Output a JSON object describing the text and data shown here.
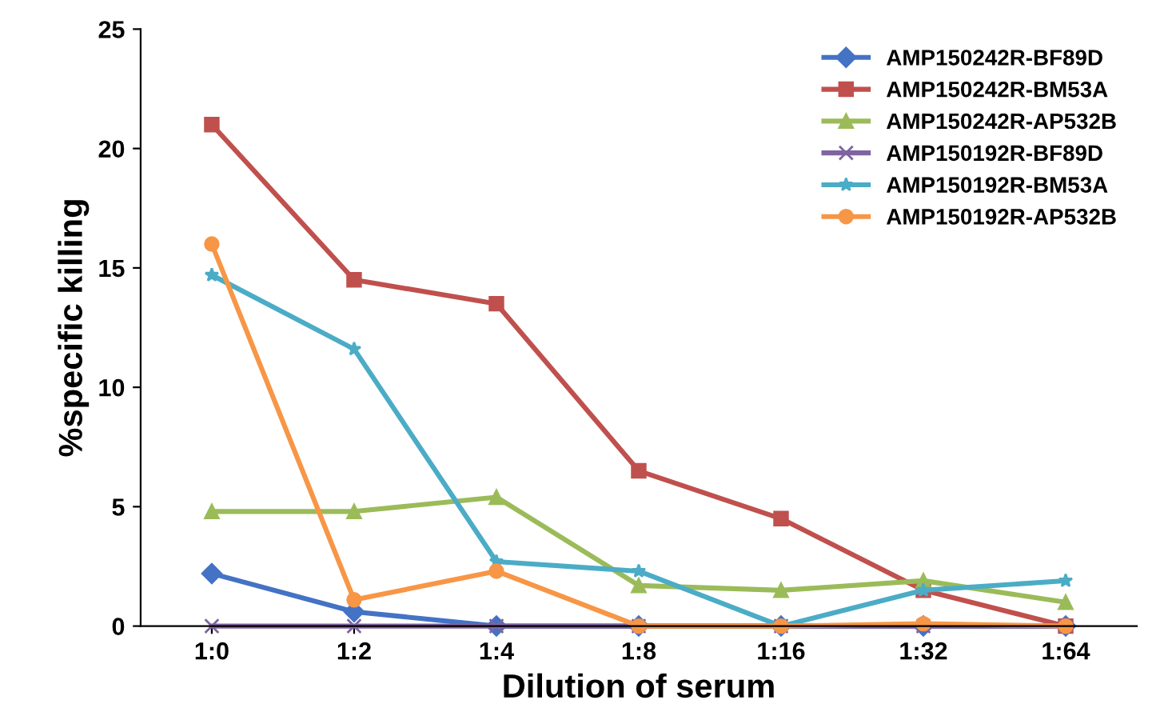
{
  "chart_data": {
    "type": "line",
    "xlabel": "Dilution of serum",
    "ylabel": "%specific killing",
    "categories": [
      "1:0",
      "1:2",
      "1:4",
      "1:8",
      "1:16",
      "1:32",
      "1:64"
    ],
    "ylim": [
      0,
      25
    ],
    "yticks": [
      0,
      5,
      10,
      15,
      20,
      25
    ],
    "grid": false,
    "legend": "top right",
    "line_style": "solid",
    "series": [
      {
        "name": "AMP150242R-BF89D",
        "color": "#4472c4",
        "marker": "diamond",
        "values": [
          2.2,
          0.6,
          0,
          0,
          0,
          0,
          0
        ]
      },
      {
        "name": "AMP150242R-BM53A",
        "color": "#c0504d",
        "marker": "square",
        "values": [
          21,
          14.5,
          13.5,
          6.5,
          4.5,
          1.5,
          0
        ]
      },
      {
        "name": "AMP150242R-AP532B",
        "color": "#9bbb59",
        "marker": "triangle",
        "values": [
          4.8,
          4.8,
          5.4,
          1.7,
          1.5,
          1.9,
          1.0
        ]
      },
      {
        "name": "AMP150192R-BF89D",
        "color": "#8064a2",
        "marker": "cross",
        "values": [
          0,
          0,
          0,
          0,
          0,
          0,
          0
        ]
      },
      {
        "name": "AMP150192R-BM53A",
        "color": "#4bacc6",
        "marker": "star",
        "values": [
          14.7,
          11.6,
          2.7,
          2.3,
          0,
          1.5,
          1.9
        ]
      },
      {
        "name": "AMP150192R-AP532B",
        "color": "#f79646",
        "marker": "circle",
        "values": [
          16,
          1.1,
          2.3,
          0,
          0,
          0.1,
          0
        ]
      }
    ]
  }
}
